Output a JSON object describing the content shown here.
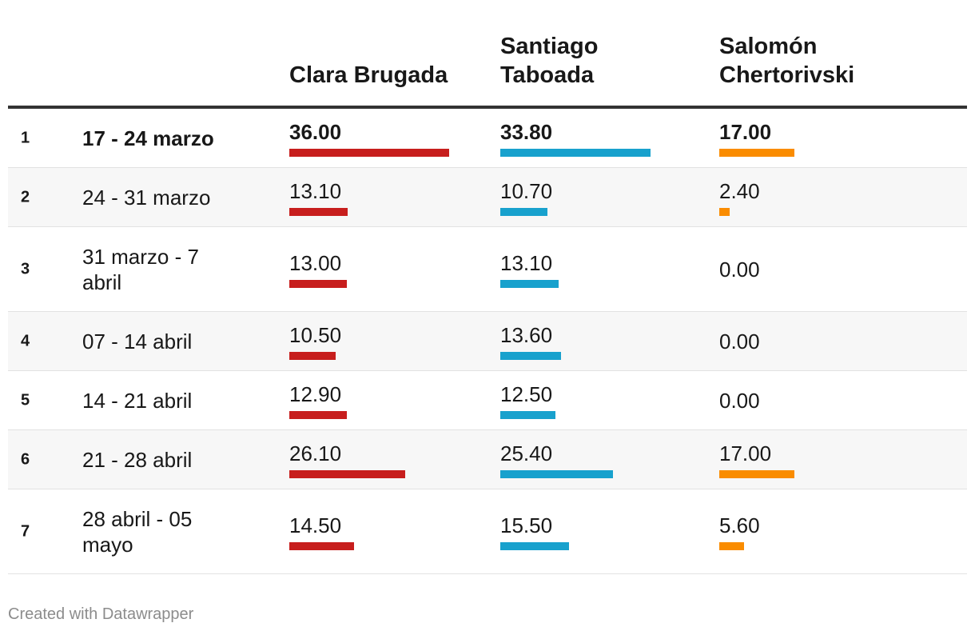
{
  "chart_data": {
    "type": "table",
    "columns": [
      "Clara Brugada",
      "Santiago Taboada",
      "Salomón Chertorivski"
    ],
    "series": [
      {
        "name": "Clara Brugada",
        "color": "#c71e1d",
        "values": [
          36.0,
          13.1,
          13.0,
          10.5,
          12.9,
          26.1,
          14.5
        ]
      },
      {
        "name": "Santiago Taboada",
        "color": "#18a1cd",
        "values": [
          33.8,
          10.7,
          13.1,
          13.6,
          12.5,
          25.4,
          15.5
        ]
      },
      {
        "name": "Salomón Chertorivski",
        "color": "#fa8c00",
        "values": [
          17.0,
          2.4,
          0.0,
          0.0,
          0.0,
          17.0,
          5.6
        ]
      }
    ],
    "rows": [
      {
        "index": "1",
        "label": "17 - 24 marzo"
      },
      {
        "index": "2",
        "label": "24 - 31 marzo"
      },
      {
        "index": "3",
        "label": "31 marzo - 7 abril"
      },
      {
        "index": "4",
        "label": "07 - 14 abril"
      },
      {
        "index": "5",
        "label": "14 - 21 abril"
      },
      {
        "index": "6",
        "label": "21 - 28 abril"
      },
      {
        "index": "7",
        "label": "28 abril - 05 mayo"
      }
    ]
  },
  "footer": "Created with Datawrapper"
}
